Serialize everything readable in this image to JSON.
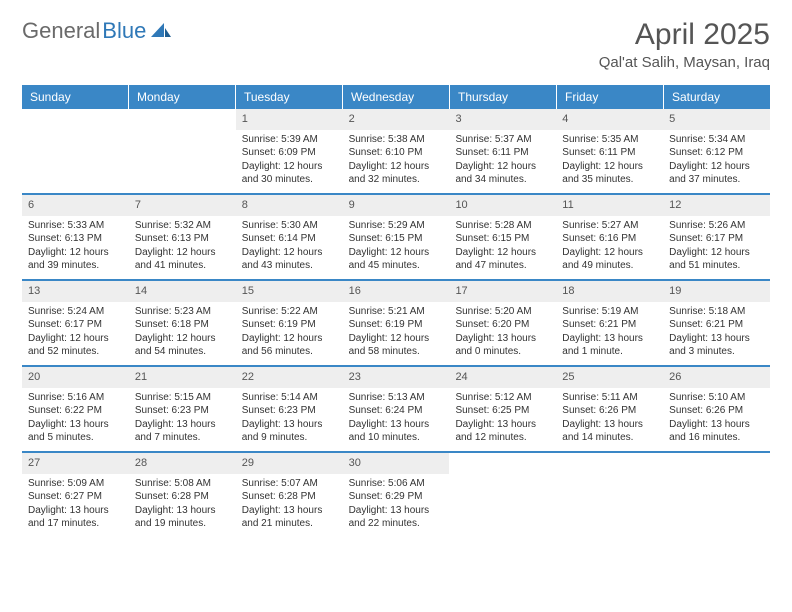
{
  "brand": {
    "part1": "General",
    "part2": "Blue"
  },
  "title": "April 2025",
  "location": "Qal'at Salih, Maysan, Iraq",
  "colors": {
    "header_bg": "#3a87c6",
    "header_text": "#ffffff",
    "daynum_bg": "#eeeeee",
    "rule": "#3a87c6",
    "text": "#333333",
    "title_text": "#555555"
  },
  "dow": [
    "Sunday",
    "Monday",
    "Tuesday",
    "Wednesday",
    "Thursday",
    "Friday",
    "Saturday"
  ],
  "weeks": [
    [
      null,
      null,
      {
        "n": "1",
        "sr": "5:39 AM",
        "ss": "6:09 PM",
        "dl": "12 hours and 30 minutes."
      },
      {
        "n": "2",
        "sr": "5:38 AM",
        "ss": "6:10 PM",
        "dl": "12 hours and 32 minutes."
      },
      {
        "n": "3",
        "sr": "5:37 AM",
        "ss": "6:11 PM",
        "dl": "12 hours and 34 minutes."
      },
      {
        "n": "4",
        "sr": "5:35 AM",
        "ss": "6:11 PM",
        "dl": "12 hours and 35 minutes."
      },
      {
        "n": "5",
        "sr": "5:34 AM",
        "ss": "6:12 PM",
        "dl": "12 hours and 37 minutes."
      }
    ],
    [
      {
        "n": "6",
        "sr": "5:33 AM",
        "ss": "6:13 PM",
        "dl": "12 hours and 39 minutes."
      },
      {
        "n": "7",
        "sr": "5:32 AM",
        "ss": "6:13 PM",
        "dl": "12 hours and 41 minutes."
      },
      {
        "n": "8",
        "sr": "5:30 AM",
        "ss": "6:14 PM",
        "dl": "12 hours and 43 minutes."
      },
      {
        "n": "9",
        "sr": "5:29 AM",
        "ss": "6:15 PM",
        "dl": "12 hours and 45 minutes."
      },
      {
        "n": "10",
        "sr": "5:28 AM",
        "ss": "6:15 PM",
        "dl": "12 hours and 47 minutes."
      },
      {
        "n": "11",
        "sr": "5:27 AM",
        "ss": "6:16 PM",
        "dl": "12 hours and 49 minutes."
      },
      {
        "n": "12",
        "sr": "5:26 AM",
        "ss": "6:17 PM",
        "dl": "12 hours and 51 minutes."
      }
    ],
    [
      {
        "n": "13",
        "sr": "5:24 AM",
        "ss": "6:17 PM",
        "dl": "12 hours and 52 minutes."
      },
      {
        "n": "14",
        "sr": "5:23 AM",
        "ss": "6:18 PM",
        "dl": "12 hours and 54 minutes."
      },
      {
        "n": "15",
        "sr": "5:22 AM",
        "ss": "6:19 PM",
        "dl": "12 hours and 56 minutes."
      },
      {
        "n": "16",
        "sr": "5:21 AM",
        "ss": "6:19 PM",
        "dl": "12 hours and 58 minutes."
      },
      {
        "n": "17",
        "sr": "5:20 AM",
        "ss": "6:20 PM",
        "dl": "13 hours and 0 minutes."
      },
      {
        "n": "18",
        "sr": "5:19 AM",
        "ss": "6:21 PM",
        "dl": "13 hours and 1 minute."
      },
      {
        "n": "19",
        "sr": "5:18 AM",
        "ss": "6:21 PM",
        "dl": "13 hours and 3 minutes."
      }
    ],
    [
      {
        "n": "20",
        "sr": "5:16 AM",
        "ss": "6:22 PM",
        "dl": "13 hours and 5 minutes."
      },
      {
        "n": "21",
        "sr": "5:15 AM",
        "ss": "6:23 PM",
        "dl": "13 hours and 7 minutes."
      },
      {
        "n": "22",
        "sr": "5:14 AM",
        "ss": "6:23 PM",
        "dl": "13 hours and 9 minutes."
      },
      {
        "n": "23",
        "sr": "5:13 AM",
        "ss": "6:24 PM",
        "dl": "13 hours and 10 minutes."
      },
      {
        "n": "24",
        "sr": "5:12 AM",
        "ss": "6:25 PM",
        "dl": "13 hours and 12 minutes."
      },
      {
        "n": "25",
        "sr": "5:11 AM",
        "ss": "6:26 PM",
        "dl": "13 hours and 14 minutes."
      },
      {
        "n": "26",
        "sr": "5:10 AM",
        "ss": "6:26 PM",
        "dl": "13 hours and 16 minutes."
      }
    ],
    [
      {
        "n": "27",
        "sr": "5:09 AM",
        "ss": "6:27 PM",
        "dl": "13 hours and 17 minutes."
      },
      {
        "n": "28",
        "sr": "5:08 AM",
        "ss": "6:28 PM",
        "dl": "13 hours and 19 minutes."
      },
      {
        "n": "29",
        "sr": "5:07 AM",
        "ss": "6:28 PM",
        "dl": "13 hours and 21 minutes."
      },
      {
        "n": "30",
        "sr": "5:06 AM",
        "ss": "6:29 PM",
        "dl": "13 hours and 22 minutes."
      },
      null,
      null,
      null
    ]
  ],
  "labels": {
    "sunrise": "Sunrise:",
    "sunset": "Sunset:",
    "daylight": "Daylight:"
  }
}
